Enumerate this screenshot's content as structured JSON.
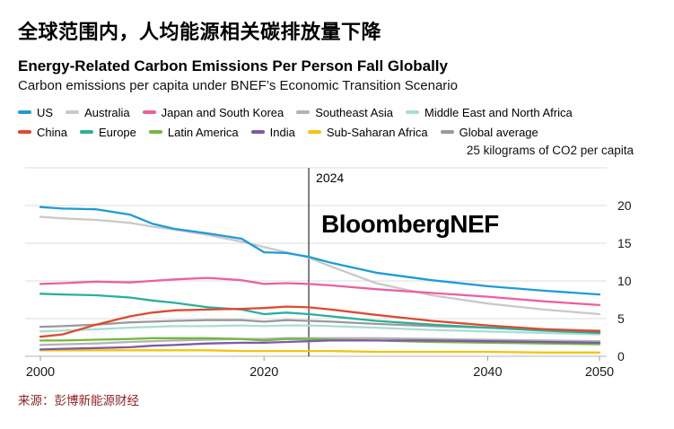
{
  "titles": {
    "chinese": "全球范围内，人均能源相关碳排放量下降",
    "english": "Energy-Related Carbon Emissions Per Person Fall Globally",
    "subtitle": "Carbon emissions per capita under BNEF’s Economic Transition Scenario"
  },
  "watermark": "BloombergNEF",
  "source": "来源：彭博新能源财经",
  "colors": {
    "source_text": "#8f1f1f",
    "axis_text": "#1a1a1a",
    "grid": "#dcdcdc",
    "zero_line": "#b4b4b4",
    "tick": "#9a9a9a",
    "annotation_line": "#000000"
  },
  "chart_data": {
    "type": "line",
    "unit_label": "25 kilograms of CO2 per capita",
    "x": [
      2000,
      2002,
      2005,
      2008,
      2010,
      2012,
      2015,
      2018,
      2020,
      2022,
      2024,
      2026,
      2030,
      2035,
      2040,
      2045,
      2050
    ],
    "series": [
      {
        "name": "US",
        "color": "#1f9bd7",
        "values": [
          19.8,
          19.6,
          19.5,
          18.8,
          17.6,
          16.9,
          16.3,
          15.6,
          13.8,
          13.7,
          13.2,
          12.4,
          11.1,
          10.1,
          9.3,
          8.7,
          8.2
        ]
      },
      {
        "name": "Australia",
        "color": "#c9c9c9",
        "values": [
          18.5,
          18.3,
          18.1,
          17.7,
          17.2,
          16.8,
          16.1,
          15.2,
          14.5,
          13.8,
          13.1,
          11.9,
          9.7,
          8.1,
          7.0,
          6.2,
          5.6
        ]
      },
      {
        "name": "Japan and South Korea",
        "color": "#ee5f9e",
        "values": [
          9.6,
          9.7,
          9.9,
          9.8,
          10.0,
          10.2,
          10.4,
          10.1,
          9.6,
          9.7,
          9.6,
          9.4,
          8.9,
          8.4,
          7.9,
          7.3,
          6.8
        ]
      },
      {
        "name": "Southeast Asia",
        "color": "#b3b3b3",
        "values": [
          1.5,
          1.6,
          1.7,
          1.9,
          2.0,
          2.1,
          2.2,
          2.3,
          2.3,
          2.4,
          2.4,
          2.4,
          2.4,
          2.3,
          2.2,
          2.1,
          2.0
        ]
      },
      {
        "name": "Middle East and North Africa",
        "color": "#aadcd6",
        "values": [
          3.3,
          3.4,
          3.6,
          3.8,
          3.9,
          4.0,
          4.0,
          4.1,
          4.0,
          4.1,
          4.1,
          4.0,
          3.8,
          3.5,
          3.3,
          3.1,
          2.9
        ]
      },
      {
        "name": "China",
        "color": "#e0492e",
        "values": [
          2.6,
          2.9,
          4.2,
          5.3,
          5.8,
          6.1,
          6.2,
          6.3,
          6.4,
          6.6,
          6.5,
          6.2,
          5.5,
          4.7,
          4.1,
          3.6,
          3.3
        ]
      },
      {
        "name": "Europe",
        "color": "#28b09c",
        "values": [
          8.3,
          8.2,
          8.1,
          7.8,
          7.4,
          7.1,
          6.5,
          6.2,
          5.6,
          5.8,
          5.6,
          5.3,
          4.7,
          4.2,
          3.8,
          3.4,
          3.1
        ]
      },
      {
        "name": "Latin America",
        "color": "#74b843",
        "values": [
          2.1,
          2.1,
          2.2,
          2.3,
          2.4,
          2.4,
          2.4,
          2.3,
          2.1,
          2.3,
          2.3,
          2.2,
          2.1,
          1.9,
          1.8,
          1.7,
          1.6
        ]
      },
      {
        "name": "India",
        "color": "#7c5aa7",
        "values": [
          0.9,
          1.0,
          1.1,
          1.2,
          1.4,
          1.5,
          1.7,
          1.8,
          1.8,
          1.9,
          2.0,
          2.1,
          2.1,
          2.1,
          2.0,
          1.9,
          1.8
        ]
      },
      {
        "name": "Sub-Saharan Africa",
        "color": "#f2c50f",
        "values": [
          0.8,
          0.8,
          0.8,
          0.8,
          0.8,
          0.8,
          0.8,
          0.7,
          0.7,
          0.7,
          0.7,
          0.7,
          0.6,
          0.6,
          0.6,
          0.5,
          0.5
        ]
      },
      {
        "name": "Global average",
        "color": "#9a9a9a",
        "values": [
          3.9,
          4.0,
          4.2,
          4.5,
          4.6,
          4.7,
          4.8,
          4.8,
          4.6,
          4.8,
          4.7,
          4.6,
          4.3,
          4.0,
          3.8,
          3.6,
          3.4
        ]
      }
    ],
    "ylim": [
      0,
      25
    ],
    "yticks": [
      0,
      5,
      10,
      15,
      20
    ],
    "xticks": [
      2000,
      2020,
      2040,
      2050
    ],
    "annotation": {
      "x": 2024,
      "label": "2024"
    },
    "grid": true,
    "legend_position": "top"
  }
}
